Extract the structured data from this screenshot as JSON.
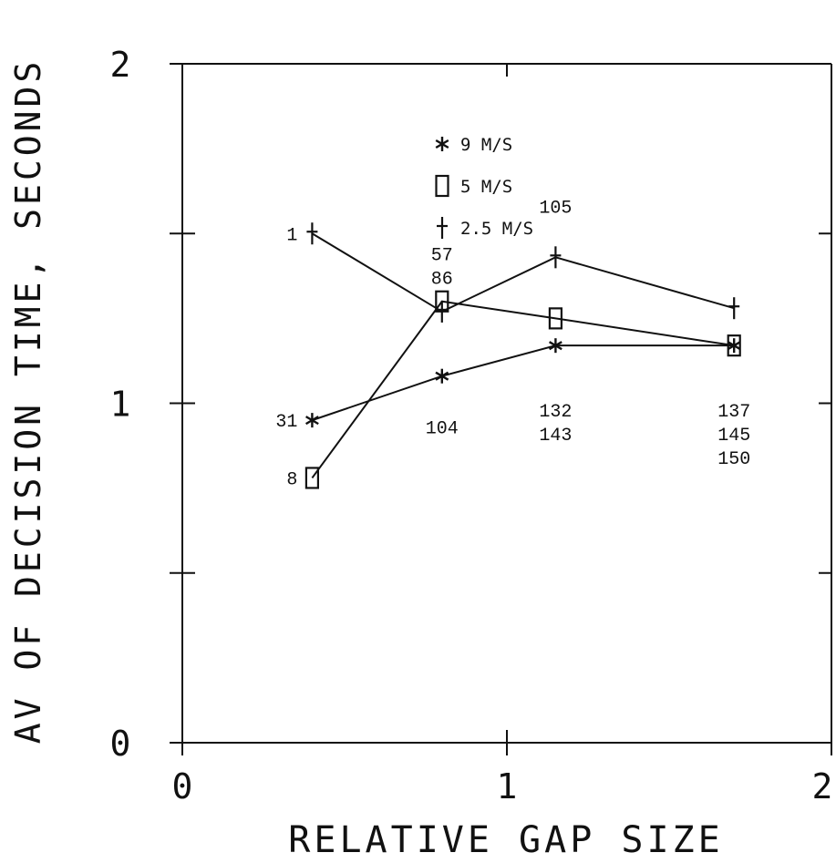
{
  "chart_data": {
    "type": "line",
    "title": "",
    "xlabel": "RELATIVE GAP SIZE",
    "ylabel": "AV OF DECISION TIME, SECONDS",
    "xlim": [
      0,
      2
    ],
    "ylim": [
      0,
      2
    ],
    "x_tick_labels": [
      "0",
      "1",
      "2"
    ],
    "y_tick_labels": [
      "0",
      "1",
      "2"
    ],
    "grid": false,
    "legend_position": "top-center",
    "series": [
      {
        "name": "9 M/S",
        "marker": "asterisk",
        "x": [
          0.4,
          0.8,
          1.15,
          1.7
        ],
        "y": [
          0.95,
          1.08,
          1.17,
          1.17
        ]
      },
      {
        "name": "5 M/S",
        "marker": "square",
        "x": [
          0.4,
          0.8,
          1.15,
          1.7
        ],
        "y": [
          0.78,
          1.3,
          1.25,
          1.17
        ]
      },
      {
        "name": "2.5 M/S",
        "marker": "plus",
        "x": [
          0.4,
          0.8,
          1.15,
          1.7
        ],
        "y": [
          1.5,
          1.27,
          1.43,
          1.28
        ]
      }
    ],
    "annotations": [
      {
        "text": "1",
        "x": 0.4,
        "y": 1.5,
        "anchor": "left"
      },
      {
        "text": "31",
        "x": 0.4,
        "y": 0.95,
        "anchor": "left"
      },
      {
        "text": "8",
        "x": 0.4,
        "y": 0.78,
        "anchor": "left"
      },
      {
        "text": "57",
        "x": 0.8,
        "y": 1.44,
        "anchor": "center"
      },
      {
        "text": "86",
        "x": 0.8,
        "y": 1.37,
        "anchor": "center"
      },
      {
        "text": "104",
        "x": 0.8,
        "y": 0.93,
        "anchor": "center"
      },
      {
        "text": "105",
        "x": 1.15,
        "y": 1.58,
        "anchor": "center"
      },
      {
        "text": "132",
        "x": 1.15,
        "y": 0.98,
        "anchor": "center"
      },
      {
        "text": "143",
        "x": 1.15,
        "y": 0.91,
        "anchor": "center"
      },
      {
        "text": "137",
        "x": 1.7,
        "y": 0.98,
        "anchor": "center"
      },
      {
        "text": "145",
        "x": 1.7,
        "y": 0.91,
        "anchor": "center"
      },
      {
        "text": "150",
        "x": 1.7,
        "y": 0.84,
        "anchor": "center"
      }
    ]
  }
}
